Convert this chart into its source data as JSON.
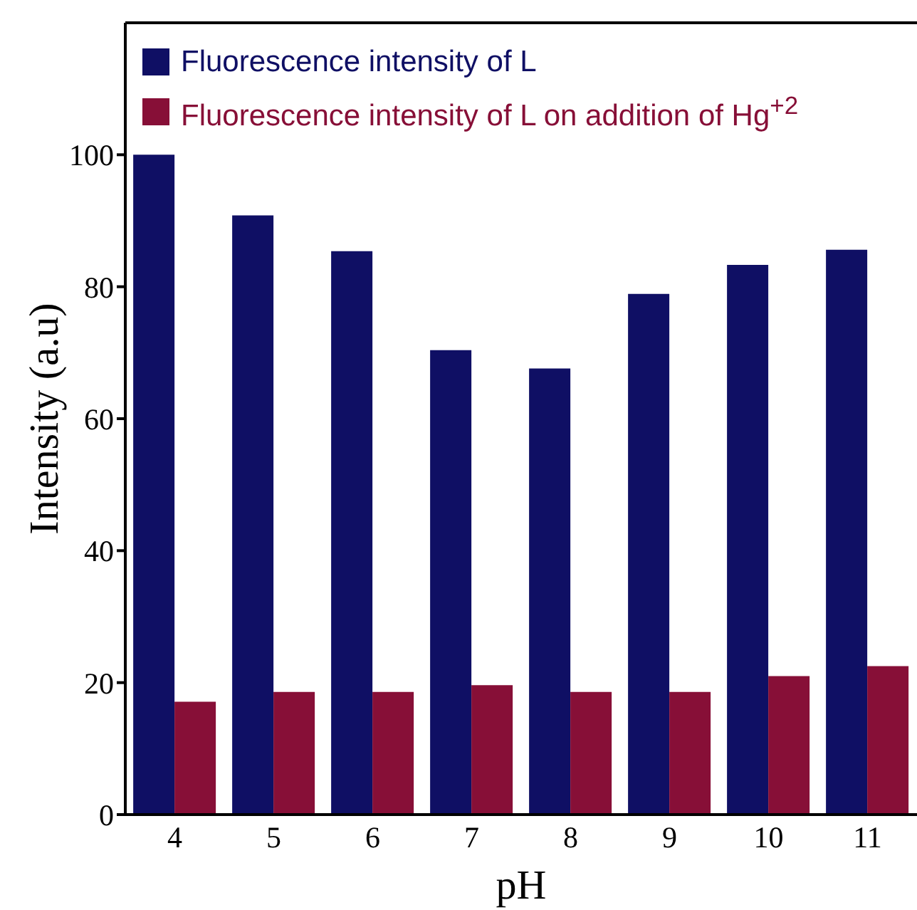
{
  "chart_data": {
    "type": "bar",
    "xlabel": "pH",
    "ylabel": "Intensity (a.u)",
    "categories": [
      "4",
      "5",
      "6",
      "7",
      "8",
      "9",
      "10",
      "11"
    ],
    "series": [
      {
        "name": "Fluorescence intensity of L",
        "color": "#0f0f64",
        "values": [
          100,
          90.8,
          85.4,
          70.4,
          67.6,
          78.9,
          83.3,
          85.6
        ]
      },
      {
        "name": "Fluorescence intensity of L on addition of Hg$^{+2}$",
        "color": "#870f37",
        "values": [
          17.1,
          18.6,
          18.6,
          19.6,
          18.6,
          18.6,
          21.0,
          22.5
        ]
      }
    ],
    "ylim": [
      0,
      120
    ],
    "yticks": [
      0,
      20,
      40,
      60,
      80,
      100
    ],
    "grid": false,
    "legend": "top left"
  }
}
